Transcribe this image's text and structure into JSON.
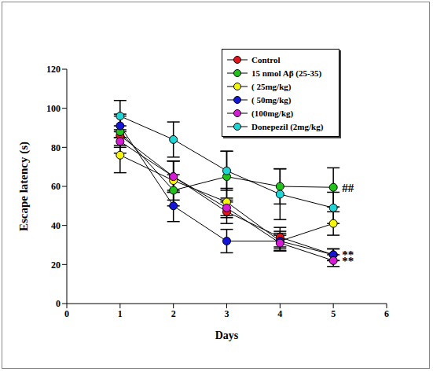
{
  "chart_data": {
    "type": "line",
    "x_label": "Days",
    "y_label": "Escape latency (s)",
    "x": [
      1,
      2,
      3,
      4,
      5
    ],
    "xlim": [
      0,
      6
    ],
    "xticks": [
      0,
      1,
      2,
      3,
      4,
      5,
      6
    ],
    "ylim": [
      0,
      120
    ],
    "yticks": [
      0,
      20,
      40,
      60,
      80,
      100,
      120
    ],
    "grid": false,
    "legend": "upper right",
    "marker": "circle",
    "line_style": "solid",
    "series": [
      {
        "name": "Control",
        "color": "#e0161b",
        "values": [
          86,
          65,
          47,
          34,
          25
        ],
        "errors": [
          5,
          8,
          6,
          5,
          3
        ]
      },
      {
        "name": "15 nmol Aβ (25-35)",
        "color": "#21c21a",
        "values": [
          88,
          58,
          65,
          60,
          59.5
        ],
        "errors": [
          8,
          8,
          13,
          9,
          10
        ]
      },
      {
        "name": "( 25mg/kg)",
        "color": "#f4f40d",
        "values": [
          76,
          63,
          52,
          32,
          41
        ],
        "errors": [
          9,
          10,
          7,
          4,
          6
        ]
      },
      {
        "name": "( 50mg/kg)",
        "color": "#1515d6",
        "values": [
          91,
          50,
          32,
          32,
          25
        ],
        "errors": [
          6,
          8,
          6,
          5,
          3
        ]
      },
      {
        "name": "(100mg/kg)",
        "color": "#d41cd4",
        "values": [
          83,
          65,
          49,
          31,
          22
        ],
        "errors": [
          6,
          8,
          5,
          4,
          3
        ]
      },
      {
        "name": "Donepezil (2mg/kg)",
        "color": "#1fd4d4",
        "values": [
          96,
          84,
          68,
          56,
          49
        ],
        "errors": [
          8,
          9,
          10,
          13,
          8
        ]
      }
    ],
    "annotations": [
      {
        "text": "##",
        "x": 5,
        "y": 59.5
      },
      {
        "text": "**",
        "x": 5,
        "y": 25
      },
      {
        "text": "**",
        "x": 5,
        "y": 22
      }
    ]
  }
}
